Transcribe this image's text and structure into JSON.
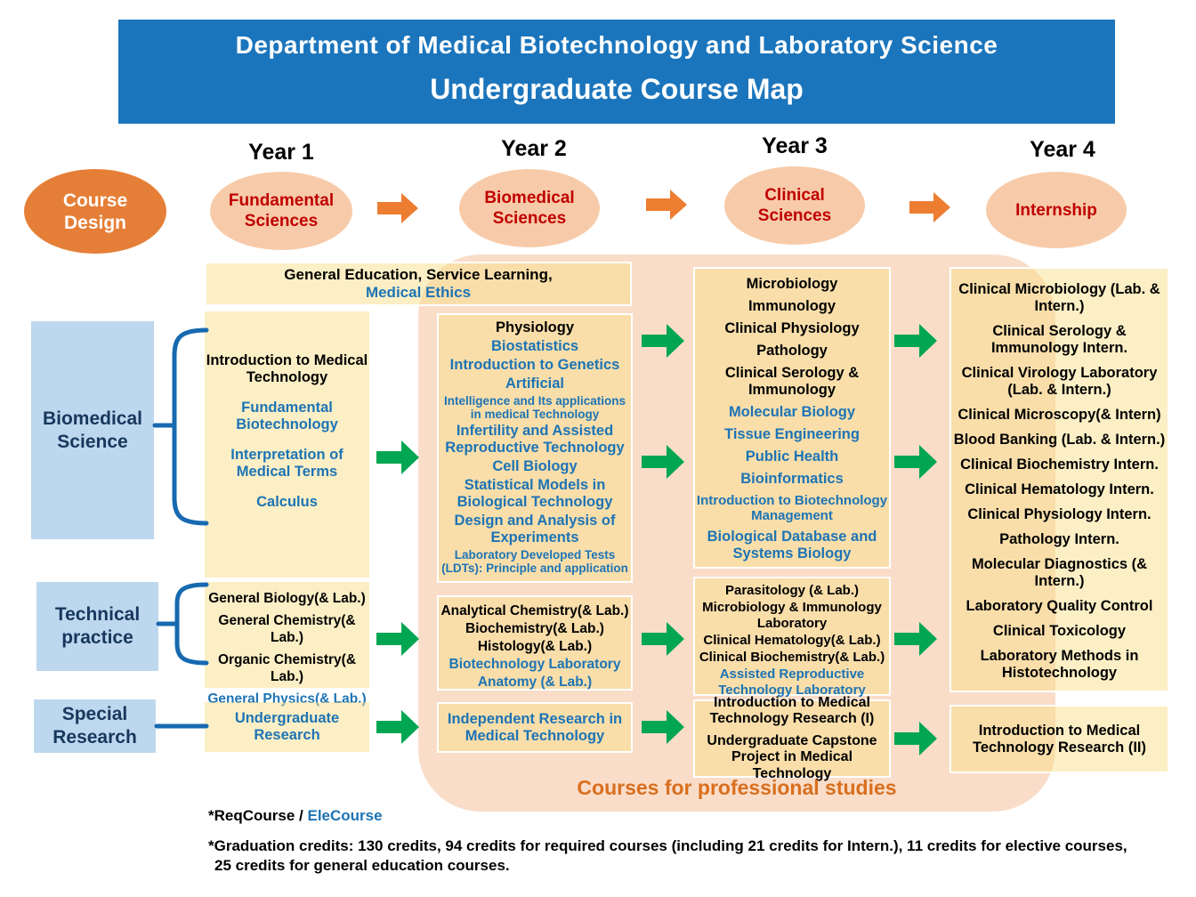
{
  "header": {
    "line1": "Department of Medical Biotechnology and Laboratory Science",
    "line2": "Undergraduate Course Map"
  },
  "timeline": {
    "years": [
      "Year 1",
      "Year 2",
      "Year 3",
      "Year 4"
    ],
    "course_design": "Course Design",
    "stages": [
      "Fundamental Sciences",
      "Biomedical Sciences",
      "Clinical Sciences",
      "Internship"
    ]
  },
  "tracks": {
    "biomedical": "Biomedical Science",
    "technical": "Technical practice",
    "special": "Special Research"
  },
  "gen_ed": {
    "line1": "General Education, Service Learning,",
    "line2": "Medical Ethics"
  },
  "courses": {
    "y1_biomedical": [
      {
        "t": "Introduction to Medical Technology",
        "c": "req"
      },
      {
        "t": "Fundamental Biotechnology",
        "c": "ele"
      },
      {
        "t": "Interpretation of Medical Terms",
        "c": "ele"
      },
      {
        "t": "Calculus",
        "c": "ele"
      }
    ],
    "y2_biomedical": [
      {
        "t": "Physiology",
        "c": "req"
      },
      {
        "t": "Biostatistics",
        "c": "ele"
      },
      {
        "t": "Introduction to Genetics",
        "c": "ele"
      },
      {
        "t": "Artificial",
        "c": "ele"
      },
      {
        "t": "Intelligence and Its applications in medical Technology",
        "c": "ele",
        "s": "sm"
      },
      {
        "t": "Infertility and Assisted Reproductive Technology",
        "c": "ele"
      },
      {
        "t": "Cell Biology",
        "c": "ele"
      },
      {
        "t": "Statistical Models in Biological Technology",
        "c": "ele"
      },
      {
        "t": "Design and Analysis of Experiments",
        "c": "ele"
      },
      {
        "t": "Laboratory Developed Tests (LDTs): Principle and application",
        "c": "ele",
        "s": "sm"
      }
    ],
    "y3_biomedical": [
      {
        "t": "Microbiology",
        "c": "req"
      },
      {
        "t": "Immunology",
        "c": "req"
      },
      {
        "t": "Clinical Physiology",
        "c": "req"
      },
      {
        "t": "Pathology",
        "c": "req"
      },
      {
        "t": "Clinical Serology & Immunology",
        "c": "req"
      },
      {
        "t": "Molecular Biology",
        "c": "ele"
      },
      {
        "t": "Tissue Engineering",
        "c": "ele"
      },
      {
        "t": "Public Health",
        "c": "ele"
      },
      {
        "t": "Bioinformatics",
        "c": "ele"
      },
      {
        "t": "Introduction to Biotechnology Management",
        "c": "ele",
        "s": "sm2"
      },
      {
        "t": "Biological Database and Systems Biology",
        "c": "ele"
      }
    ],
    "y4_internship": [
      {
        "t": "Clinical Microbiology (Lab. & Intern.)",
        "c": "req"
      },
      {
        "t": "Clinical Serology & Immunology Intern.",
        "c": "req"
      },
      {
        "t": "Clinical Virology Laboratory (Lab. & Intern.)",
        "c": "req"
      },
      {
        "t": "Clinical Microscopy(& Intern)",
        "c": "req"
      },
      {
        "t": "Blood Banking (Lab. & Intern.)",
        "c": "req"
      },
      {
        "t": "Clinical Biochemistry Intern.",
        "c": "req"
      },
      {
        "t": "Clinical Hematology Intern.",
        "c": "req"
      },
      {
        "t": "Clinical Physiology Intern.",
        "c": "req"
      },
      {
        "t": "Pathology Intern.",
        "c": "req"
      },
      {
        "t": "Molecular Diagnostics (& Intern.)",
        "c": "req"
      },
      {
        "t": "Laboratory Quality Control",
        "c": "req"
      },
      {
        "t": "Clinical Toxicology",
        "c": "req"
      },
      {
        "t": "Laboratory Methods in Histotechnology",
        "c": "req"
      }
    ],
    "y1_technical": [
      {
        "t": "General Biology(& Lab.)",
        "c": "req"
      },
      {
        "t": "General Chemistry(& Lab.)",
        "c": "req"
      },
      {
        "t": "Organic Chemistry(& Lab.)",
        "c": "req"
      },
      {
        "t": "General Physics(& Lab.)",
        "c": "ele"
      }
    ],
    "y2_technical": [
      {
        "t": "Analytical Chemistry(& Lab.)",
        "c": "req"
      },
      {
        "t": "Biochemistry(& Lab.)",
        "c": "req"
      },
      {
        "t": "Histology(& Lab.)",
        "c": "req"
      },
      {
        "t": "Biotechnology Laboratory",
        "c": "ele"
      },
      {
        "t": "Anatomy (& Lab.)",
        "c": "ele"
      }
    ],
    "y3_technical": [
      {
        "t": "Parasitology (& Lab.)",
        "c": "req"
      },
      {
        "t": "Microbiology & Immunology Laboratory",
        "c": "req"
      },
      {
        "t": "Clinical Hematology(& Lab.)",
        "c": "req"
      },
      {
        "t": "Clinical Biochemistry(& Lab.)",
        "c": "req"
      },
      {
        "t": "Assisted Reproductive Technology Laboratory",
        "c": "ele"
      }
    ],
    "y1_special": [
      {
        "t": "Undergraduate Research",
        "c": "ele"
      }
    ],
    "y2_special": [
      {
        "t": "Independent Research in Medical Technology",
        "c": "ele"
      }
    ],
    "y3_special": [
      {
        "t": "Introduction to Medical Technology Research (I)",
        "c": "req"
      },
      {
        "t": "Undergraduate Capstone Project in Medical Technology",
        "c": "req"
      }
    ],
    "y4_special": [
      {
        "t": "Introduction to Medical Technology Research (II)",
        "c": "req"
      }
    ]
  },
  "footer": {
    "professional": "Courses for professional studies",
    "req_label": "*ReqCourse / ",
    "ele_label": "EleCourse",
    "credits_line1": "*Graduation credits: 130 credits, 94 credits for required courses (including 21 credits for Intern.), 11 credits for elective courses,",
    "credits_line2": "25 credits for general education courses."
  },
  "colors": {
    "header_bg": "#1B75BC",
    "design_ellipse": "#E57F37",
    "stage_ellipse_bg": "#F7CBA9",
    "stage_ellipse_text": "#C00000",
    "orange_arrow": "#ED7D31",
    "green_arrow": "#00A651",
    "peach_background": "#F9DDC9",
    "course_box": "#FBE6A9",
    "sidebar_bg": "#BDD7EE",
    "sidebar_text": "#17375D",
    "elective_blue": "#1D74B5",
    "professional_text": "#D96F1E",
    "bracket_blue": "#1769B0"
  }
}
